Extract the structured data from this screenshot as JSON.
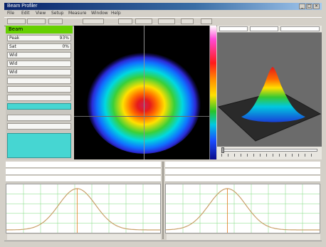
{
  "window": {
    "title": "Beam Profiler",
    "menu": [
      "File",
      "Edit",
      "View",
      "Setup",
      "Measure",
      "Window",
      "Help"
    ]
  },
  "left_panel": {
    "header": "Beam",
    "rows": [
      {
        "label": "Peak",
        "value": "93%"
      },
      {
        "label": "Sat",
        "value": "0%"
      },
      {
        "label": "Wid",
        "value": ""
      },
      {
        "label": "Wid",
        "value": ""
      },
      {
        "label": "Wid",
        "value": ""
      },
      {
        "label": "",
        "value": ""
      },
      {
        "label": "",
        "value": ""
      },
      {
        "label": "",
        "value": ""
      },
      {
        "label": "",
        "value": ""
      },
      {
        "label": "",
        "value": ""
      },
      {
        "label": "",
        "value": ""
      }
    ],
    "block_rows": [
      {
        "label": "",
        "value": ""
      },
      {
        "label": "",
        "value": ""
      },
      {
        "label": "",
        "value": ""
      }
    ]
  },
  "measurements": {
    "left": [
      {
        "label": "",
        "value": ""
      },
      {
        "label": "",
        "value": ""
      },
      {
        "label": "",
        "value": ""
      }
    ],
    "right": [
      {
        "label": "",
        "value": ""
      },
      {
        "label": "",
        "value": ""
      },
      {
        "label": "",
        "value": ""
      }
    ]
  },
  "profiles": {
    "left_peak": 0.46,
    "right_peak": 0.4,
    "trace_color": "#c9a06a",
    "marker_color": "#e07a1e",
    "grid_color": "#7fdc7f"
  },
  "colors": {
    "header_green": "#66d000",
    "row_cyan": "#46d6d2"
  }
}
